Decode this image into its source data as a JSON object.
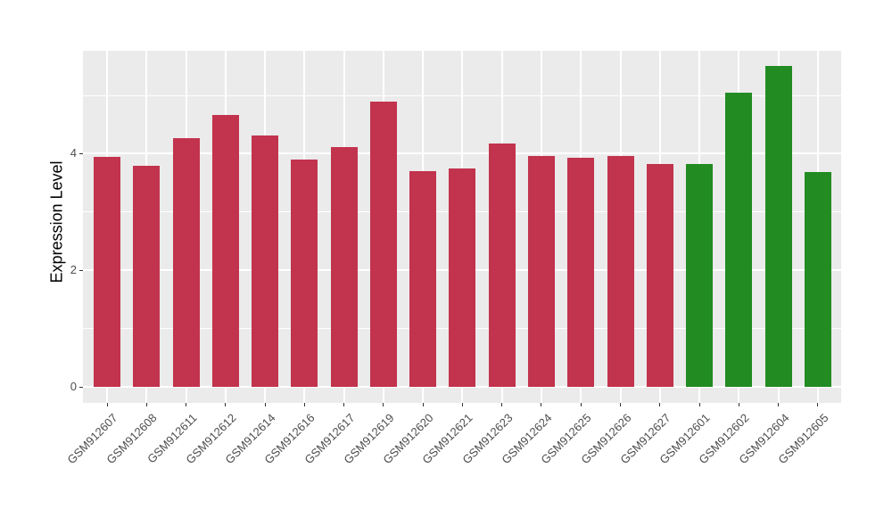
{
  "chart_data": {
    "type": "bar",
    "title": "",
    "xlabel": "",
    "ylabel": "Expression Level",
    "categories": [
      "GSM912607",
      "GSM912608",
      "GSM912611",
      "GSM912612",
      "GSM912614",
      "GSM912616",
      "GSM912617",
      "GSM912619",
      "GSM912620",
      "GSM912621",
      "GSM912623",
      "GSM912624",
      "GSM912625",
      "GSM912626",
      "GSM912627",
      "GSM912601",
      "GSM912602",
      "GSM912604",
      "GSM912605"
    ],
    "values": [
      3.94,
      3.79,
      4.27,
      4.66,
      4.31,
      3.9,
      4.11,
      4.9,
      3.7,
      3.75,
      4.18,
      3.96,
      3.93,
      3.96,
      3.83,
      3.82,
      5.05,
      5.5,
      3.69
    ],
    "bar_colors": [
      "#C2334D",
      "#C2334D",
      "#C2334D",
      "#C2334D",
      "#C2334D",
      "#C2334D",
      "#C2334D",
      "#C2334D",
      "#C2334D",
      "#C2334D",
      "#C2334D",
      "#C2334D",
      "#C2334D",
      "#C2334D",
      "#C2334D",
      "#228B22",
      "#228B22",
      "#228B22",
      "#228B22"
    ],
    "group_colors": {
      "group1": "#C2334D",
      "group2": "#228B22"
    },
    "y_major_ticks": [
      0,
      2,
      4
    ],
    "y_minor_gridlines": [
      1,
      3,
      5
    ],
    "ylim": [
      -0.27,
      5.76
    ],
    "legend": "none",
    "grid": "on",
    "panel_bg": "#EBEBEB",
    "grid_color": "#FFFFFF",
    "axis_text_color": "#4D4D4D",
    "tick_mark_color": "#333333"
  }
}
